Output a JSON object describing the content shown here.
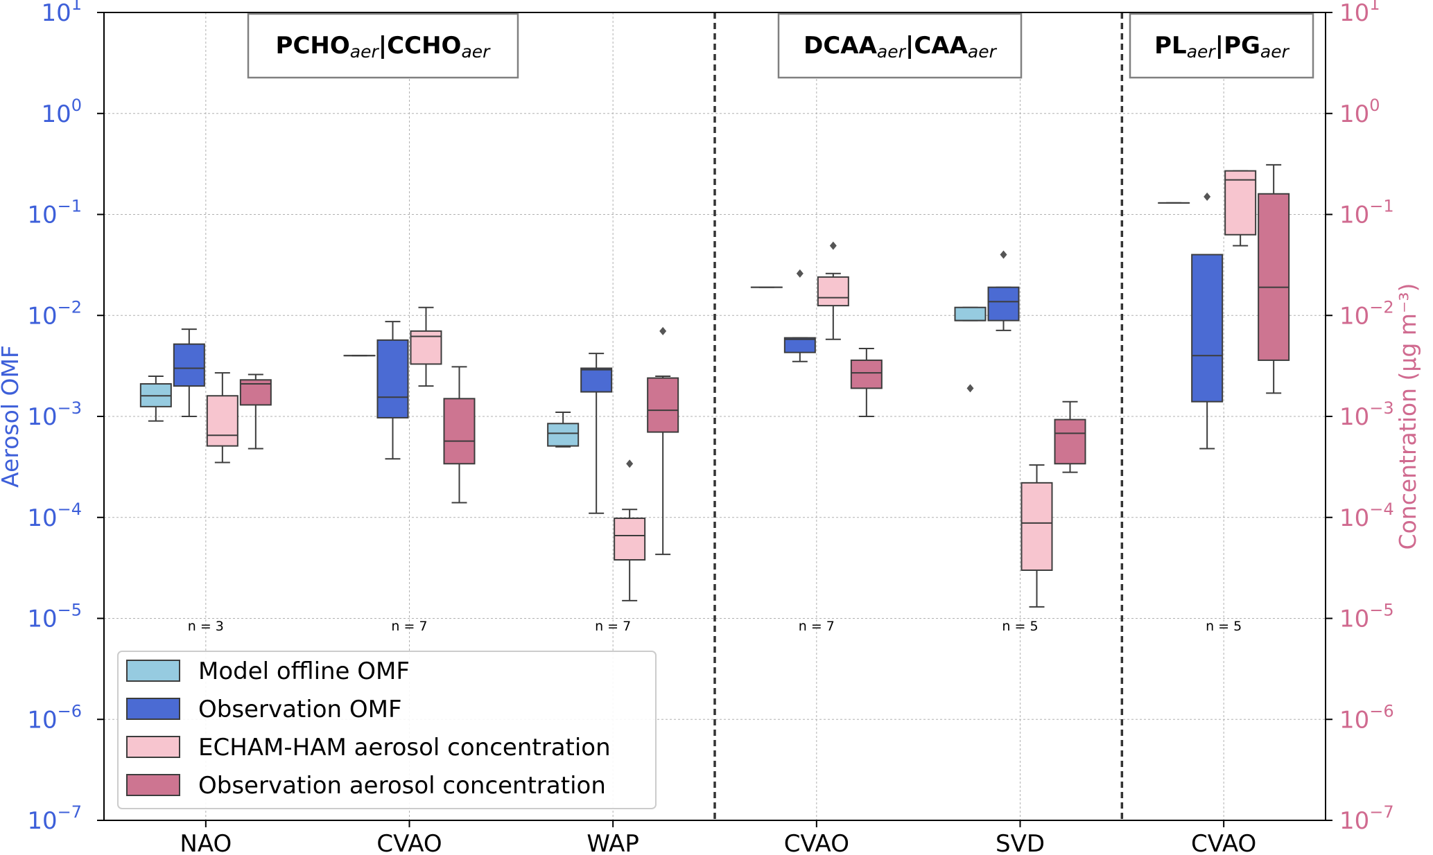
{
  "chart_data": {
    "type": "box",
    "scale": "log",
    "ylim": [
      -7,
      1
    ],
    "yticks": [
      {
        "exp": 1,
        "base": "10",
        "sup": "1"
      },
      {
        "exp": 0,
        "base": "10",
        "sup": "0"
      },
      {
        "exp": -1,
        "base": "10",
        "sup": "−1"
      },
      {
        "exp": -2,
        "base": "10",
        "sup": "−2"
      },
      {
        "exp": -3,
        "base": "10",
        "sup": "−3"
      },
      {
        "exp": -4,
        "base": "10",
        "sup": "−4"
      },
      {
        "exp": -5,
        "base": "10",
        "sup": "−5"
      },
      {
        "exp": -6,
        "base": "10",
        "sup": "−6"
      },
      {
        "exp": -7,
        "base": "10",
        "sup": "−7"
      }
    ],
    "ylabel_left": "Aerosol OMF",
    "ylabel_right": "Concentration (µg m⁻³)",
    "categories": [
      "NAO",
      "CVAO",
      "WAP",
      "CVAO",
      "SVD",
      "CVAO"
    ],
    "n_labels": [
      "n = 3",
      "n = 7",
      "n = 7",
      "n = 7",
      "n = 5",
      "n = 5"
    ],
    "dividers_after": [
      2,
      4
    ],
    "groups": [
      {
        "main": "PCHO",
        "sub1": "aer",
        "sep": "|CCHO",
        "sub2": "aer",
        "span": [
          0,
          2
        ]
      },
      {
        "main": "DCAA",
        "sub1": "aer",
        "sep": "|CAA",
        "sub2": "aer",
        "span": [
          3,
          4
        ]
      },
      {
        "main": "PL",
        "sub1": "aer",
        "sep": "|PG",
        "sub2": "aer",
        "span": [
          5,
          5
        ]
      }
    ],
    "series": [
      {
        "name": "Model offline OMF",
        "color": "#96cbe0",
        "boxes": [
          {
            "w": [
              0.0009,
              0.0025
            ],
            "q": [
              0.00125,
              0.0021
            ],
            "m": 0.0016,
            "f": []
          },
          {
            "w": [
              0.004,
              0.004
            ],
            "q": [
              0.004,
              0.004
            ],
            "m": 0.004,
            "f": []
          },
          {
            "w": [
              0.0005,
              0.0011
            ],
            "q": [
              0.00051,
              0.00085
            ],
            "m": 0.00068,
            "f": []
          },
          {
            "w": [
              0.019,
              0.019
            ],
            "q": [
              0.019,
              0.019
            ],
            "m": 0.019,
            "f": []
          },
          {
            "w": [
              0.0089,
              0.012
            ],
            "q": [
              0.0089,
              0.012
            ],
            "m": 0.0089,
            "f": [
              0.0019
            ]
          },
          {
            "w": [
              0.13,
              0.13
            ],
            "q": [
              0.13,
              0.13
            ],
            "m": 0.13,
            "f": []
          }
        ]
      },
      {
        "name": "Observation OMF",
        "color": "#4b6bd3",
        "boxes": [
          {
            "w": [
              0.001,
              0.0073
            ],
            "q": [
              0.002,
              0.0052
            ],
            "m": 0.003,
            "f": []
          },
          {
            "w": [
              0.00038,
              0.0087
            ],
            "q": [
              0.00097,
              0.0057
            ],
            "m": 0.00155,
            "f": []
          },
          {
            "w": [
              0.00011,
              0.0042
            ],
            "q": [
              0.00175,
              0.003
            ],
            "m": 0.0029,
            "f": []
          },
          {
            "w": [
              0.0035,
              0.006
            ],
            "q": [
              0.0043,
              0.006
            ],
            "m": 0.0058,
            "f": [
              0.026
            ]
          },
          {
            "w": [
              0.0071,
              0.019
            ],
            "q": [
              0.0089,
              0.019
            ],
            "m": 0.0137,
            "f": [
              0.04
            ]
          },
          {
            "w": [
              0.00048,
              0.04
            ],
            "q": [
              0.0014,
              0.04
            ],
            "m": 0.004,
            "f": [
              0.15
            ]
          }
        ]
      },
      {
        "name": "ECHAM-HAM aerosol concentration",
        "color": "#f7c5cf",
        "boxes": [
          {
            "w": [
              0.00035,
              0.0027
            ],
            "q": [
              0.00051,
              0.0016
            ],
            "m": 0.00065,
            "f": []
          },
          {
            "w": [
              0.002,
              0.012
            ],
            "q": [
              0.0033,
              0.007
            ],
            "m": 0.0062,
            "f": []
          },
          {
            "w": [
              1.5e-05,
              0.00012
            ],
            "q": [
              3.8e-05,
              9.8e-05
            ],
            "m": 6.6e-05,
            "f": [
              0.00034
            ]
          },
          {
            "w": [
              0.0058,
              0.026
            ],
            "q": [
              0.0125,
              0.024
            ],
            "m": 0.015,
            "f": [
              0.049
            ]
          },
          {
            "w": [
              1.3e-05,
              0.00033
            ],
            "q": [
              3e-05,
              0.00022
            ],
            "m": 8.8e-05,
            "f": []
          },
          {
            "w": [
              0.049,
              0.27
            ],
            "q": [
              0.063,
              0.27
            ],
            "m": 0.22,
            "f": []
          }
        ]
      },
      {
        "name": "Observation aerosol concentration",
        "color": "#cd7591",
        "boxes": [
          {
            "w": [
              0.00048,
              0.0026
            ],
            "q": [
              0.0013,
              0.0023
            ],
            "m": 0.0021,
            "f": []
          },
          {
            "w": [
              0.00014,
              0.0031
            ],
            "q": [
              0.00034,
              0.0015
            ],
            "m": 0.00057,
            "f": []
          },
          {
            "w": [
              4.3e-05,
              0.0025
            ],
            "q": [
              0.0007,
              0.0024
            ],
            "m": 0.00115,
            "f": [
              0.007
            ]
          },
          {
            "w": [
              0.001,
              0.0047
            ],
            "q": [
              0.0019,
              0.0036
            ],
            "m": 0.0027,
            "f": []
          },
          {
            "w": [
              0.00028,
              0.0014
            ],
            "q": [
              0.00034,
              0.00093
            ],
            "m": 0.00068,
            "f": []
          },
          {
            "w": [
              0.0017,
              0.31
            ],
            "q": [
              0.0036,
              0.16
            ],
            "m": 0.019,
            "f": []
          }
        ]
      }
    ]
  }
}
